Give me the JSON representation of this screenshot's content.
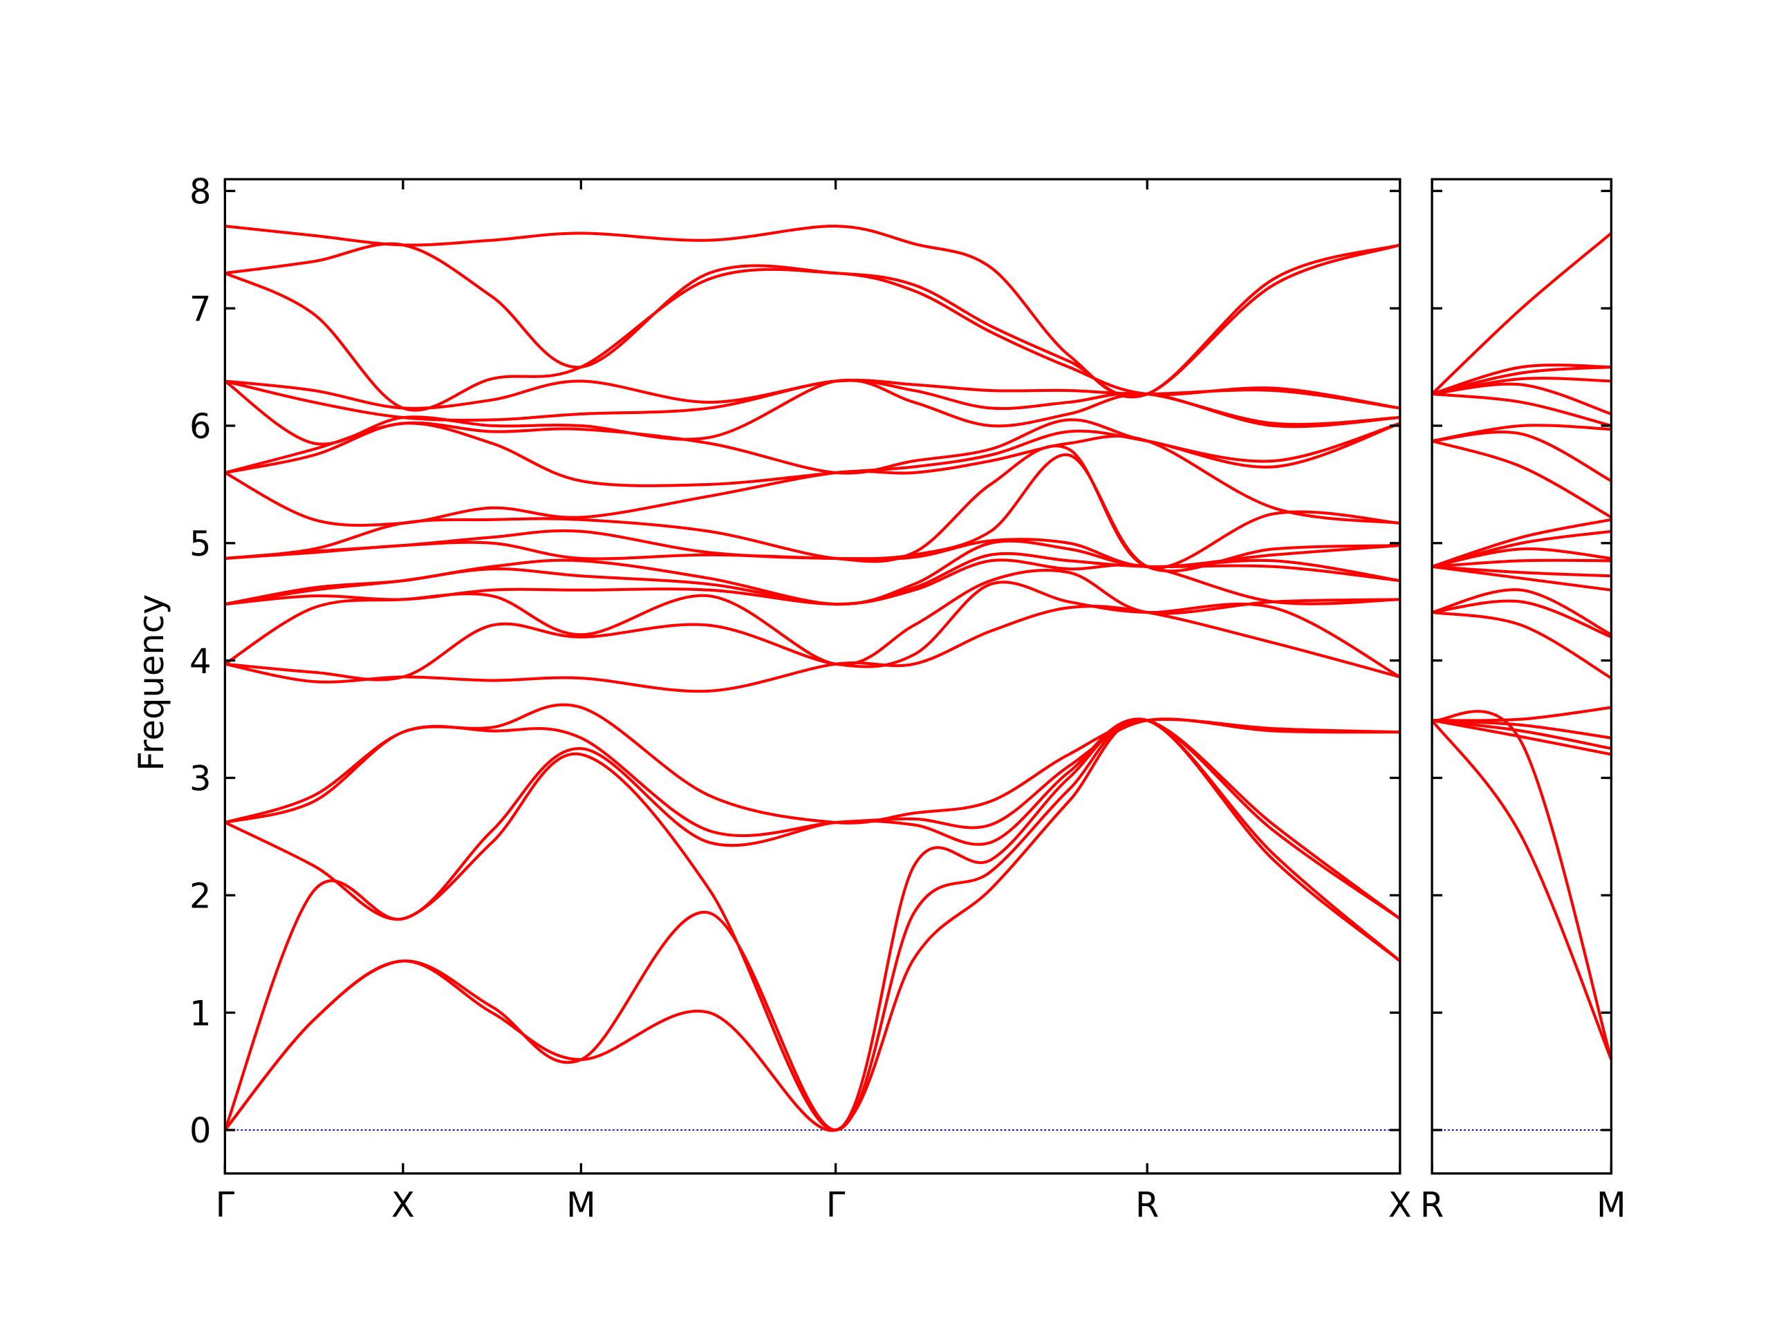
{
  "chart_data": [
    {
      "type": "line",
      "ylabel": "Frequency",
      "color": "#ff0000",
      "line_width": 2.5,
      "hline": 0,
      "hline_color": "#0000cc",
      "xlim": [
        0,
        6.6
      ],
      "ylim": [
        -0.37,
        8.1
      ],
      "xticks": [
        {
          "value": 0,
          "label": "Γ"
        },
        {
          "value": 1,
          "label": "X"
        },
        {
          "value": 2,
          "label": "M"
        },
        {
          "value": 3.43,
          "label": "Γ"
        },
        {
          "value": 5.18,
          "label": "R"
        },
        {
          "value": 6.6,
          "label": "X"
        }
      ],
      "yticks": [
        0,
        1,
        2,
        3,
        4,
        5,
        6,
        7,
        8
      ],
      "x": [
        0,
        0.5,
        1,
        1.5,
        2,
        2.72,
        3.43,
        3.87,
        4.3,
        4.74,
        5.18,
        5.89,
        6.6
      ],
      "series": [
        {
          "values": [
            0,
            0.94,
            1.44,
            1.0,
            0.6,
            1.0,
            0,
            1.46,
            2.05,
            2.8,
            3.49,
            2.3,
            1.44
          ]
        },
        {
          "values": [
            0,
            0.94,
            1.44,
            1.05,
            0.6,
            1.85,
            0,
            1.85,
            2.2,
            2.9,
            3.49,
            2.35,
            1.44
          ]
        },
        {
          "values": [
            0,
            2.04,
            1.8,
            2.45,
            3.2,
            2.05,
            0,
            2.25,
            2.3,
            3.0,
            3.49,
            2.55,
            1.8
          ]
        },
        {
          "values": [
            2.62,
            2.25,
            1.8,
            2.55,
            3.25,
            2.45,
            2.62,
            2.6,
            2.45,
            3.05,
            3.49,
            2.6,
            1.8
          ]
        },
        {
          "values": [
            2.62,
            2.8,
            3.39,
            3.4,
            3.34,
            2.55,
            2.62,
            2.65,
            2.6,
            3.1,
            3.49,
            3.4,
            3.39
          ]
        },
        {
          "values": [
            2.62,
            2.85,
            3.39,
            3.43,
            3.6,
            2.85,
            2.62,
            2.7,
            2.8,
            3.2,
            3.49,
            3.42,
            3.39
          ]
        },
        {
          "values": [
            3.97,
            3.82,
            3.86,
            3.83,
            3.85,
            3.74,
            3.97,
            3.97,
            4.25,
            4.45,
            4.41,
            4.15,
            3.86
          ]
        },
        {
          "values": [
            3.97,
            3.9,
            3.86,
            4.3,
            4.2,
            4.3,
            3.97,
            4.05,
            4.65,
            4.5,
            4.41,
            4.45,
            3.86
          ]
        },
        {
          "values": [
            3.97,
            4.45,
            4.52,
            4.55,
            4.22,
            4.55,
            3.97,
            4.3,
            4.68,
            4.75,
            4.41,
            4.5,
            4.52
          ]
        },
        {
          "values": [
            4.48,
            4.55,
            4.52,
            4.6,
            4.6,
            4.6,
            4.48,
            4.6,
            4.85,
            4.78,
            4.8,
            4.5,
            4.52
          ]
        },
        {
          "values": [
            4.48,
            4.6,
            4.68,
            4.78,
            4.72,
            4.65,
            4.48,
            4.62,
            4.9,
            4.85,
            4.8,
            4.8,
            4.68
          ]
        },
        {
          "values": [
            4.48,
            4.62,
            4.68,
            4.8,
            4.85,
            4.7,
            4.48,
            4.65,
            5.0,
            4.95,
            4.8,
            4.85,
            4.68
          ]
        },
        {
          "values": [
            4.87,
            4.92,
            4.98,
            5.0,
            4.87,
            4.9,
            4.87,
            4.88,
            5.02,
            5.0,
            4.8,
            4.9,
            4.98
          ]
        },
        {
          "values": [
            4.87,
            4.93,
            4.98,
            5.05,
            5.1,
            4.92,
            4.87,
            4.9,
            5.1,
            5.75,
            4.8,
            4.95,
            4.98
          ]
        },
        {
          "values": [
            4.87,
            4.95,
            5.17,
            5.2,
            5.2,
            5.1,
            4.87,
            4.92,
            5.5,
            5.8,
            4.8,
            5.25,
            5.17
          ]
        },
        {
          "values": [
            5.6,
            5.2,
            5.17,
            5.3,
            5.22,
            5.4,
            5.6,
            5.6,
            5.7,
            5.85,
            5.87,
            5.3,
            5.17
          ]
        },
        {
          "values": [
            5.6,
            5.75,
            6.02,
            5.85,
            5.53,
            5.5,
            5.6,
            5.65,
            5.75,
            5.95,
            5.87,
            5.65,
            6.02
          ]
        },
        {
          "values": [
            5.6,
            5.8,
            6.02,
            5.95,
            5.97,
            5.85,
            5.6,
            5.7,
            5.8,
            6.05,
            5.87,
            5.7,
            6.02
          ]
        },
        {
          "values": [
            6.38,
            5.85,
            6.07,
            6.0,
            6.0,
            5.9,
            6.38,
            6.2,
            6.0,
            6.1,
            6.27,
            6.0,
            6.07
          ]
        },
        {
          "values": [
            6.38,
            6.2,
            6.07,
            6.05,
            6.1,
            6.15,
            6.38,
            6.3,
            6.15,
            6.2,
            6.27,
            6.02,
            6.07
          ]
        },
        {
          "values": [
            6.38,
            6.3,
            6.15,
            6.22,
            6.38,
            6.2,
            6.38,
            6.35,
            6.3,
            6.3,
            6.27,
            6.3,
            6.15
          ]
        },
        {
          "values": [
            7.3,
            6.95,
            6.15,
            6.4,
            6.5,
            7.25,
            7.3,
            7.15,
            6.8,
            6.5,
            6.27,
            6.32,
            6.15
          ]
        },
        {
          "values": [
            7.3,
            7.4,
            7.54,
            7.1,
            6.5,
            7.3,
            7.3,
            7.2,
            6.85,
            6.55,
            6.27,
            7.2,
            7.54
          ]
        },
        {
          "values": [
            7.7,
            7.62,
            7.54,
            7.58,
            7.64,
            7.58,
            7.7,
            7.55,
            7.35,
            6.6,
            6.27,
            7.25,
            7.54
          ]
        }
      ]
    },
    {
      "type": "line",
      "color": "#ff0000",
      "line_width": 2.5,
      "hline": 0,
      "hline_color": "#0000cc",
      "xlim": [
        0,
        1
      ],
      "ylim": [
        -0.37,
        8.1
      ],
      "xticks": [
        {
          "value": 0,
          "label": "R"
        },
        {
          "value": 1,
          "label": "M"
        }
      ],
      "yticks": [
        0,
        1,
        2,
        3,
        4,
        5,
        6,
        7,
        8
      ],
      "x": [
        0,
        0.5,
        1
      ],
      "series": [
        {
          "values": [
            3.49,
            2.5,
            0.6
          ]
        },
        {
          "values": [
            3.49,
            3.3,
            0.6
          ]
        },
        {
          "values": [
            3.49,
            3.35,
            3.2
          ]
        },
        {
          "values": [
            3.49,
            3.4,
            3.25
          ]
        },
        {
          "values": [
            3.49,
            3.45,
            3.34
          ]
        },
        {
          "values": [
            3.49,
            3.5,
            3.6
          ]
        },
        {
          "values": [
            4.41,
            4.3,
            3.85
          ]
        },
        {
          "values": [
            4.41,
            4.5,
            4.2
          ]
        },
        {
          "values": [
            4.41,
            4.6,
            4.22
          ]
        },
        {
          "values": [
            4.8,
            4.7,
            4.6
          ]
        },
        {
          "values": [
            4.8,
            4.75,
            4.72
          ]
        },
        {
          "values": [
            4.8,
            4.85,
            4.85
          ]
        },
        {
          "values": [
            4.8,
            4.95,
            4.87
          ]
        },
        {
          "values": [
            4.8,
            5.0,
            5.1
          ]
        },
        {
          "values": [
            4.8,
            5.05,
            5.2
          ]
        },
        {
          "values": [
            5.87,
            5.65,
            5.22
          ]
        },
        {
          "values": [
            5.87,
            5.93,
            5.53
          ]
        },
        {
          "values": [
            5.87,
            6.0,
            5.97
          ]
        },
        {
          "values": [
            6.27,
            6.2,
            6.0
          ]
        },
        {
          "values": [
            6.27,
            6.35,
            6.1
          ]
        },
        {
          "values": [
            6.27,
            6.4,
            6.38
          ]
        },
        {
          "values": [
            6.27,
            6.45,
            6.5
          ]
        },
        {
          "values": [
            6.27,
            6.5,
            6.5
          ]
        },
        {
          "values": [
            6.27,
            7.0,
            7.64
          ]
        }
      ]
    }
  ]
}
